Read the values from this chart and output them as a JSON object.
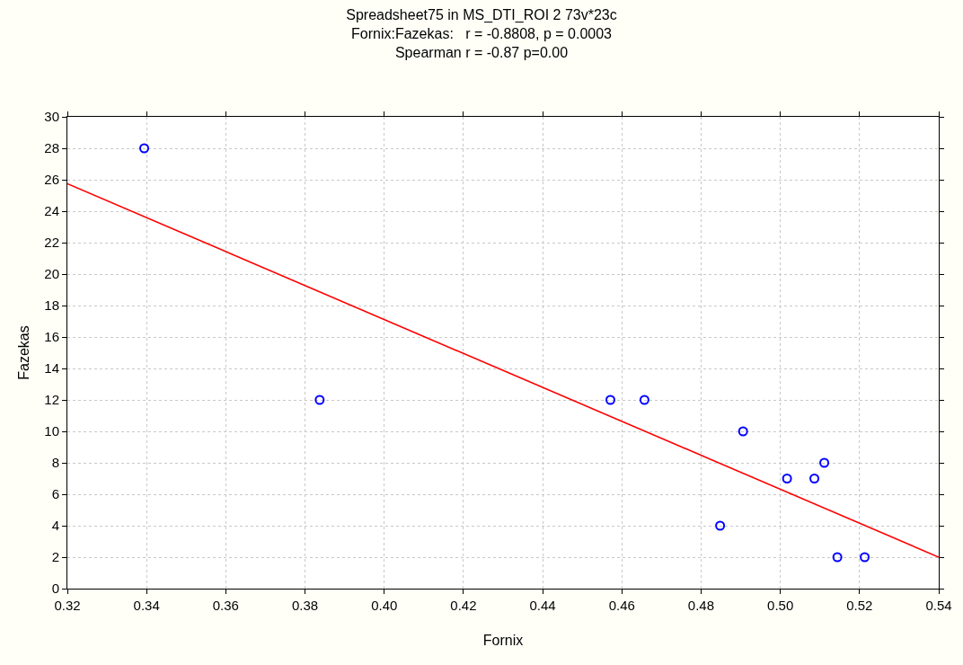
{
  "chart_data": {
    "type": "scatter",
    "title": "Spreadsheet75 in MS_DTI_ROI 2 73v*23c",
    "subtitle": "Fornix:Fazekas:   r = -0.8808, p = 0.0003\nSpearman r = -0.87 p=0.00",
    "xlabel": "Fornix",
    "ylabel": "Fazekas",
    "x": [
      0.3394,
      0.3837,
      0.4571,
      0.4657,
      0.4848,
      0.4906,
      0.5017,
      0.5086,
      0.5111,
      0.5144,
      0.5213
    ],
    "series": [
      {
        "color": "#0000ff",
        "values": [
          28,
          12,
          12,
          12,
          4,
          10,
          7,
          7,
          8,
          2,
          2
        ],
        "marker": "circle"
      },
      {
        "type": "line",
        "color": "#ff0000",
        "x": [
          0.32,
          0.54
        ],
        "values": [
          25.75,
          2.0
        ],
        "marker": "none",
        "line_style": "solid"
      }
    ],
    "xlim": [
      0.32,
      0.54
    ],
    "xticks": [
      0.32,
      0.34,
      0.36,
      0.38,
      {
        "value": 0.4,
        "label": "0.40"
      },
      0.42,
      0.44,
      0.46,
      0.48,
      {
        "value": 0.5,
        "label": "0.50"
      },
      0.52,
      0.54
    ],
    "ylim": [
      0,
      30
    ],
    "yticks": [
      0,
      2,
      4,
      6,
      8,
      10,
      12,
      14,
      16,
      18,
      20,
      22,
      24,
      26,
      28,
      30
    ],
    "grid": true
  }
}
